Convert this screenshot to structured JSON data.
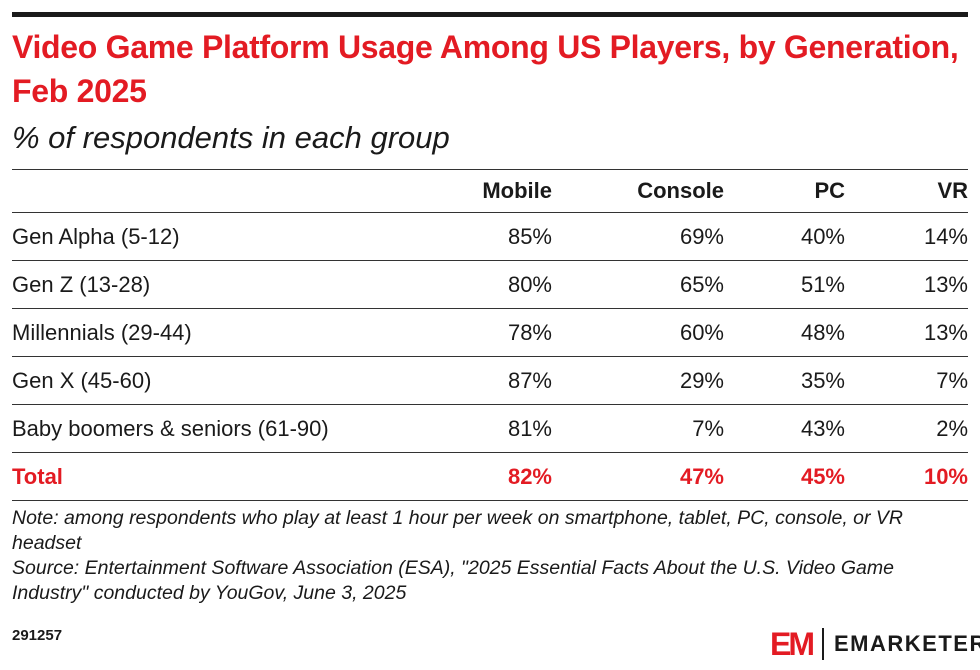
{
  "header": {
    "title": "Video Game Platform Usage Among US Players, by Generation, Feb 2025",
    "subtitle": "% of respondents in each group"
  },
  "chart_data": {
    "type": "table",
    "title": "Video Game Platform Usage Among US Players, by Generation, Feb 2025",
    "subtitle": "% of respondents in each group",
    "columns": [
      "",
      "Mobile",
      "Console",
      "PC",
      "VR"
    ],
    "rows": [
      {
        "label": "Gen Alpha (5-12)",
        "values": [
          "85%",
          "69%",
          "40%",
          "14%"
        ]
      },
      {
        "label": "Gen Z (13-28)",
        "values": [
          "80%",
          "65%",
          "51%",
          "13%"
        ]
      },
      {
        "label": "Millennials (29-44)",
        "values": [
          "78%",
          "60%",
          "48%",
          "13%"
        ]
      },
      {
        "label": "Gen X (45-60)",
        "values": [
          "87%",
          "29%",
          "35%",
          "7%"
        ]
      },
      {
        "label": "Baby boomers & seniors (61-90)",
        "values": [
          "81%",
          "7%",
          "43%",
          "2%"
        ]
      }
    ],
    "total": {
      "label": "Total",
      "values": [
        "82%",
        "47%",
        "45%",
        "10%"
      ]
    }
  },
  "footer": {
    "note": "Note: among respondents who play at least 1 hour per week on smartphone, tablet, PC, console, or VR headset",
    "source": "Source: Entertainment Software Association (ESA), \"2025 Essential Facts About the U.S. Video Game Industry\" conducted by YouGov, June 3, 2025",
    "id": "291257",
    "logo_mark": "EM",
    "brand": "EMARKETER"
  },
  "colors": {
    "accent": "#e31b23",
    "text": "#1a1a1a"
  }
}
